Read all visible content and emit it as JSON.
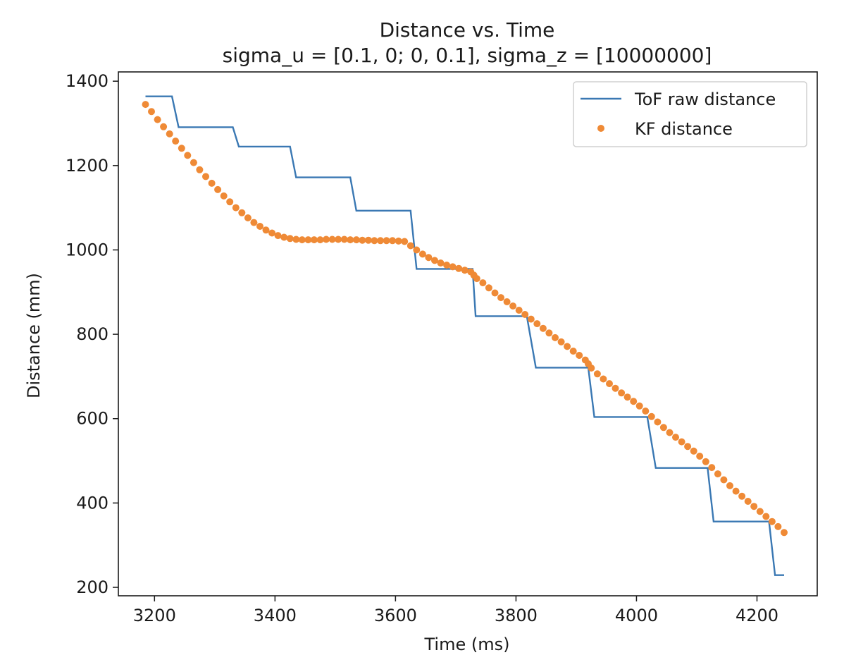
{
  "chart_data": {
    "type": "line",
    "title": "Distance vs. Time",
    "subtitle": "sigma_u = [0.1, 0; 0, 0.1], sigma_z = [10000000]",
    "xlabel": "Time (ms)",
    "ylabel": "Distance (mm)",
    "xlim": [
      3140,
      4300
    ],
    "ylim": [
      180,
      1422
    ],
    "xticks": [
      3200,
      3400,
      3600,
      3800,
      4000,
      4200
    ],
    "yticks": [
      200,
      400,
      600,
      800,
      1000,
      1200,
      1400
    ],
    "grid": false,
    "legend_position": "top-right",
    "series": [
      {
        "name": "ToF raw distance",
        "style": "line",
        "color": "#3a78b3",
        "x": [
          3185,
          3229,
          3240,
          3330,
          3340,
          3425,
          3435,
          3525,
          3535,
          3625,
          3635,
          3728,
          3733,
          3818,
          3833,
          3920,
          3930,
          4018,
          4032,
          4118,
          4128,
          4220,
          4230,
          4245
        ],
        "y": [
          1364,
          1364,
          1291,
          1291,
          1245,
          1245,
          1172,
          1172,
          1093,
          1093,
          955,
          955,
          843,
          843,
          721,
          721,
          604,
          604,
          483,
          483,
          356,
          356,
          229,
          229
        ]
      },
      {
        "name": "KF distance",
        "style": "scatter",
        "color": "#ef8a36",
        "x": [
          3185,
          3195,
          3205,
          3215,
          3225,
          3235,
          3245,
          3255,
          3265,
          3275,
          3285,
          3295,
          3305,
          3315,
          3325,
          3335,
          3345,
          3355,
          3365,
          3375,
          3385,
          3395,
          3405,
          3415,
          3425,
          3435,
          3445,
          3455,
          3465,
          3475,
          3485,
          3495,
          3505,
          3515,
          3525,
          3535,
          3545,
          3555,
          3565,
          3575,
          3585,
          3595,
          3605,
          3615,
          3625,
          3635,
          3645,
          3655,
          3665,
          3675,
          3685,
          3695,
          3705,
          3715,
          3725,
          3730,
          3735,
          3745,
          3755,
          3765,
          3775,
          3785,
          3795,
          3805,
          3815,
          3825,
          3835,
          3845,
          3855,
          3865,
          3875,
          3885,
          3895,
          3905,
          3915,
          3920,
          3925,
          3935,
          3945,
          3955,
          3965,
          3975,
          3985,
          3995,
          4005,
          4015,
          4025,
          4035,
          4045,
          4055,
          4065,
          4075,
          4085,
          4095,
          4105,
          4115,
          4125,
          4135,
          4145,
          4155,
          4165,
          4175,
          4185,
          4195,
          4205,
          4215,
          4225,
          4235,
          4245
        ],
        "y": [
          1345,
          1328,
          1309,
          1292,
          1275,
          1258,
          1241,
          1224,
          1207,
          1190,
          1174,
          1158,
          1143,
          1128,
          1114,
          1100,
          1088,
          1076,
          1065,
          1056,
          1047,
          1040,
          1034,
          1030,
          1027,
          1025,
          1024,
          1024,
          1024,
          1024,
          1025,
          1025,
          1025,
          1025,
          1024,
          1024,
          1023,
          1023,
          1022,
          1022,
          1022,
          1022,
          1021,
          1020,
          1010,
          1000,
          990,
          982,
          975,
          969,
          964,
          960,
          956,
          952,
          948,
          940,
          932,
          922,
          910,
          898,
          887,
          877,
          867,
          857,
          847,
          836,
          825,
          814,
          803,
          792,
          782,
          771,
          760,
          750,
          739,
          730,
          720,
          706,
          694,
          683,
          672,
          661,
          651,
          641,
          630,
          618,
          605,
          592,
          579,
          567,
          556,
          545,
          534,
          523,
          511,
          498,
          484,
          469,
          455,
          441,
          428,
          416,
          404,
          392,
          380,
          368,
          356,
          344,
          330
        ]
      }
    ]
  }
}
